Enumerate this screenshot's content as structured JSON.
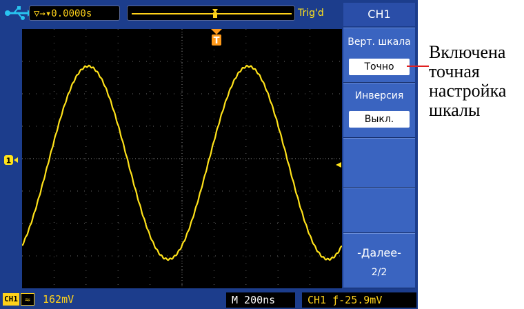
{
  "topbar": {
    "time_offset": "▽→▾0.0000s",
    "trigger_status": "Trig'd"
  },
  "menu": {
    "title": "CH1",
    "items": [
      {
        "label": "Верт. шкала",
        "value": "Точно"
      },
      {
        "label": "Инверсия",
        "value": "Выкл."
      },
      {
        "label": "",
        "value": ""
      },
      {
        "label": "",
        "value": ""
      },
      {
        "label": "-Далее-",
        "value": "2/2"
      }
    ]
  },
  "bottombar": {
    "channel": "CH1",
    "channel_coupling": "≈",
    "volts_div": "162mV",
    "time_div": "M 200ns",
    "trigger_info": "CH1 ƒ-25.9mV"
  },
  "markers": {
    "channel_marker": "1",
    "trigger_marker": "T"
  },
  "callout": {
    "lines": [
      "Включена",
      "точная",
      "настройка",
      "шкалы"
    ]
  },
  "colors": {
    "trace": "#ffe21a",
    "frame": "#1c3d8c",
    "menu": "#3a64c0",
    "callout_line": "#e02020"
  }
}
